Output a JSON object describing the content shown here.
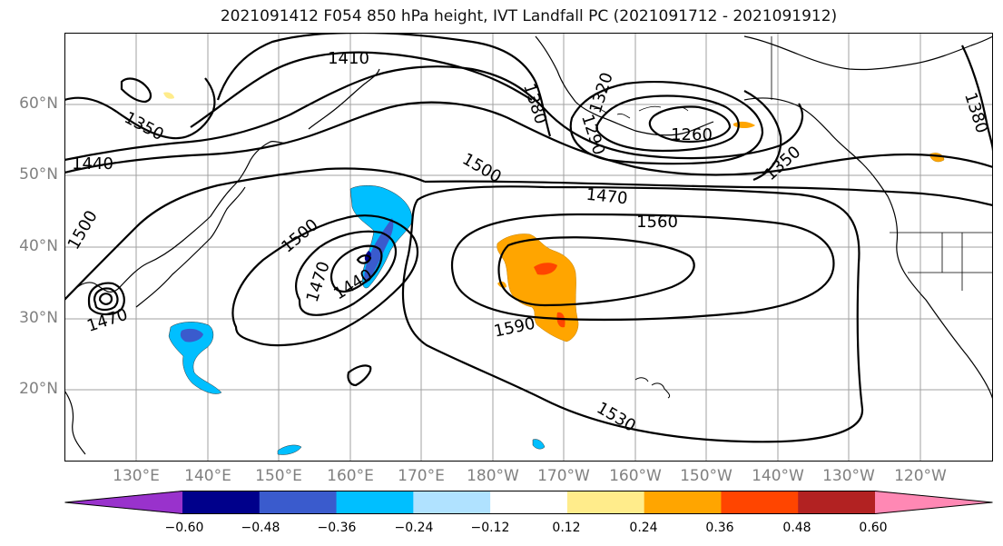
{
  "title": "2021091412 F054 850 hPa height, IVT Landfall PC (2021091712 - 2021091912)",
  "lat_labels": [
    "60°N",
    "50°N",
    "40°N",
    "30°N",
    "20°N"
  ],
  "lon_labels": [
    "130°E",
    "140°E",
    "150°E",
    "160°E",
    "170°E",
    "180°W",
    "170°W",
    "160°W",
    "150°W",
    "140°W",
    "130°W",
    "120°W"
  ],
  "contour_labels": [
    "1410",
    "1350",
    "1440",
    "1500",
    "1500",
    "1380",
    "1290",
    "1320",
    "1260",
    "1350",
    "1500",
    "1470",
    "1560",
    "1440",
    "1470",
    "1470",
    "1590",
    "1530",
    "1380"
  ],
  "colorbar": {
    "colors": [
      "#9932cc",
      "#00008b",
      "#3a5bcd",
      "#00bfff",
      "#b0e2ff",
      "#ffffff",
      "#ffec8b",
      "#ffa500",
      "#ff4500",
      "#b22222",
      "#ff88b4"
    ],
    "tick_labels": [
      "−0.60",
      "−0.48",
      "−0.36",
      "−0.24",
      "−0.12",
      "0.12",
      "0.24",
      "0.36",
      "0.48",
      "0.60"
    ]
  }
}
